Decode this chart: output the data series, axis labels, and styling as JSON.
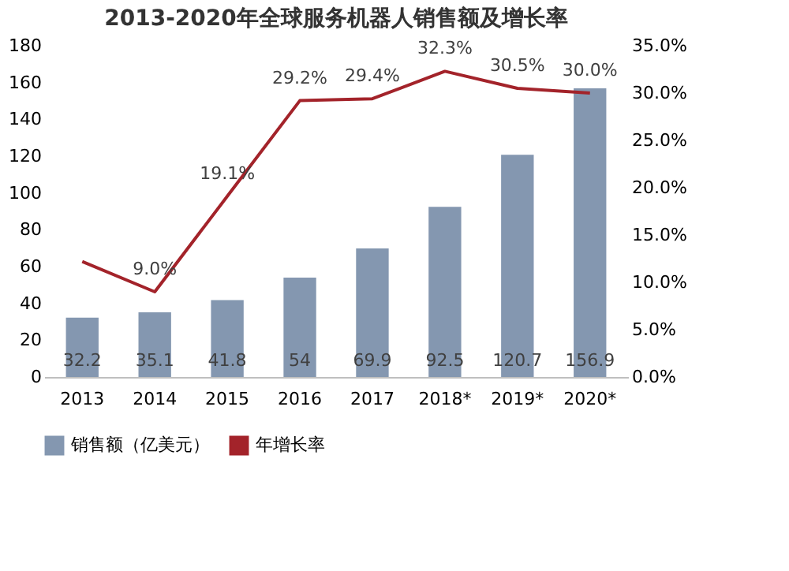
{
  "chart_data": {
    "type": "bar",
    "title": "2013-2020年全球服务机器人销售额及增长率",
    "categories": [
      "2013",
      "2014",
      "2015",
      "2016",
      "2017",
      "2018*",
      "2019*",
      "2020*"
    ],
    "series": [
      {
        "name": "销售额（亿美元）",
        "color": "#8497b0",
        "values": [
          32.2,
          35.1,
          41.8,
          54,
          69.9,
          92.5,
          120.7,
          156.9
        ],
        "value_labels": [
          "32.2",
          "35.1",
          "41.8",
          "54",
          "69.9",
          "92.5",
          "120.7",
          "156.9"
        ]
      },
      {
        "name": "年增长率",
        "type": "line",
        "axis": "y2",
        "color": "#a3232a",
        "values": [
          12.2,
          9.0,
          19.1,
          29.2,
          29.4,
          32.3,
          30.5,
          30.0
        ],
        "value_labels": [
          null,
          "9.0%",
          "19.1%",
          "29.2%",
          "29.4%",
          "32.3%",
          "30.5%",
          "30.0%"
        ]
      }
    ],
    "ylim": [
      0,
      180
    ],
    "yticks": [
      0,
      20,
      40,
      60,
      80,
      100,
      120,
      140,
      160,
      180
    ],
    "y2lim": [
      0,
      35
    ],
    "y2ticks": [
      {
        "value": 0,
        "label": "0.0%"
      },
      {
        "value": 5,
        "label": "5.0%"
      },
      {
        "value": 10,
        "label": "10.0%"
      },
      {
        "value": 15,
        "label": "15.0%"
      },
      {
        "value": 20,
        "label": "20.0%"
      },
      {
        "value": 25,
        "label": "25.0%"
      },
      {
        "value": 30,
        "label": "30.0%"
      },
      {
        "value": 35,
        "label": "35.0%"
      }
    ],
    "grid": false,
    "legend": "bottom"
  }
}
